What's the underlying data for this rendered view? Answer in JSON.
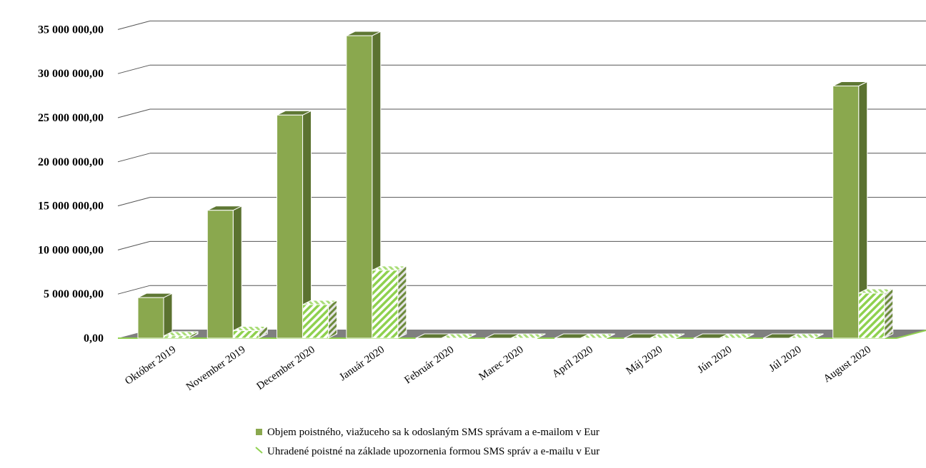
{
  "chart_data": {
    "type": "bar",
    "style": "3d-clustered-column",
    "title": "",
    "xlabel": "",
    "ylabel": "",
    "ylim": [
      0,
      35000000
    ],
    "ytick_step": 5000000,
    "yticks": [
      "0,00",
      "5 000 000,00",
      "10 000 000,00",
      "15 000 000,00",
      "20 000 000,00",
      "25 000 000,00",
      "30 000 000,00",
      "35 000 000,00"
    ],
    "grid": true,
    "legend_position": "bottom",
    "categories": [
      "Október 2019",
      "November 2019",
      "December 2020",
      "Január 2020",
      "Február 2020",
      "Marec 2020",
      "Apríl 2020",
      "Máj 2020",
      "Jún 2020",
      "Júl 2020",
      "August 2020"
    ],
    "series": [
      {
        "name": "Objem poistného, viažuceho sa k odoslaným SMS správam a e-mailom v Eur",
        "values": [
          4600000,
          14500000,
          25300000,
          34300000,
          0,
          0,
          0,
          0,
          0,
          0,
          28600000
        ],
        "color": "#8aa84e",
        "pattern": "solid"
      },
      {
        "name": "Uhradené poistné na základe upozornenia formou SMS správ a e-mailu v Eur",
        "values": [
          250000,
          850000,
          3800000,
          7700000,
          0,
          0,
          0,
          0,
          0,
          0,
          5100000
        ],
        "color": "#8fd14f",
        "pattern": "diagonal-stripes"
      }
    ],
    "colors": {
      "wall_grid": "#555555",
      "floor": "#7f7f7f",
      "floor_edge": "#92d050"
    }
  }
}
